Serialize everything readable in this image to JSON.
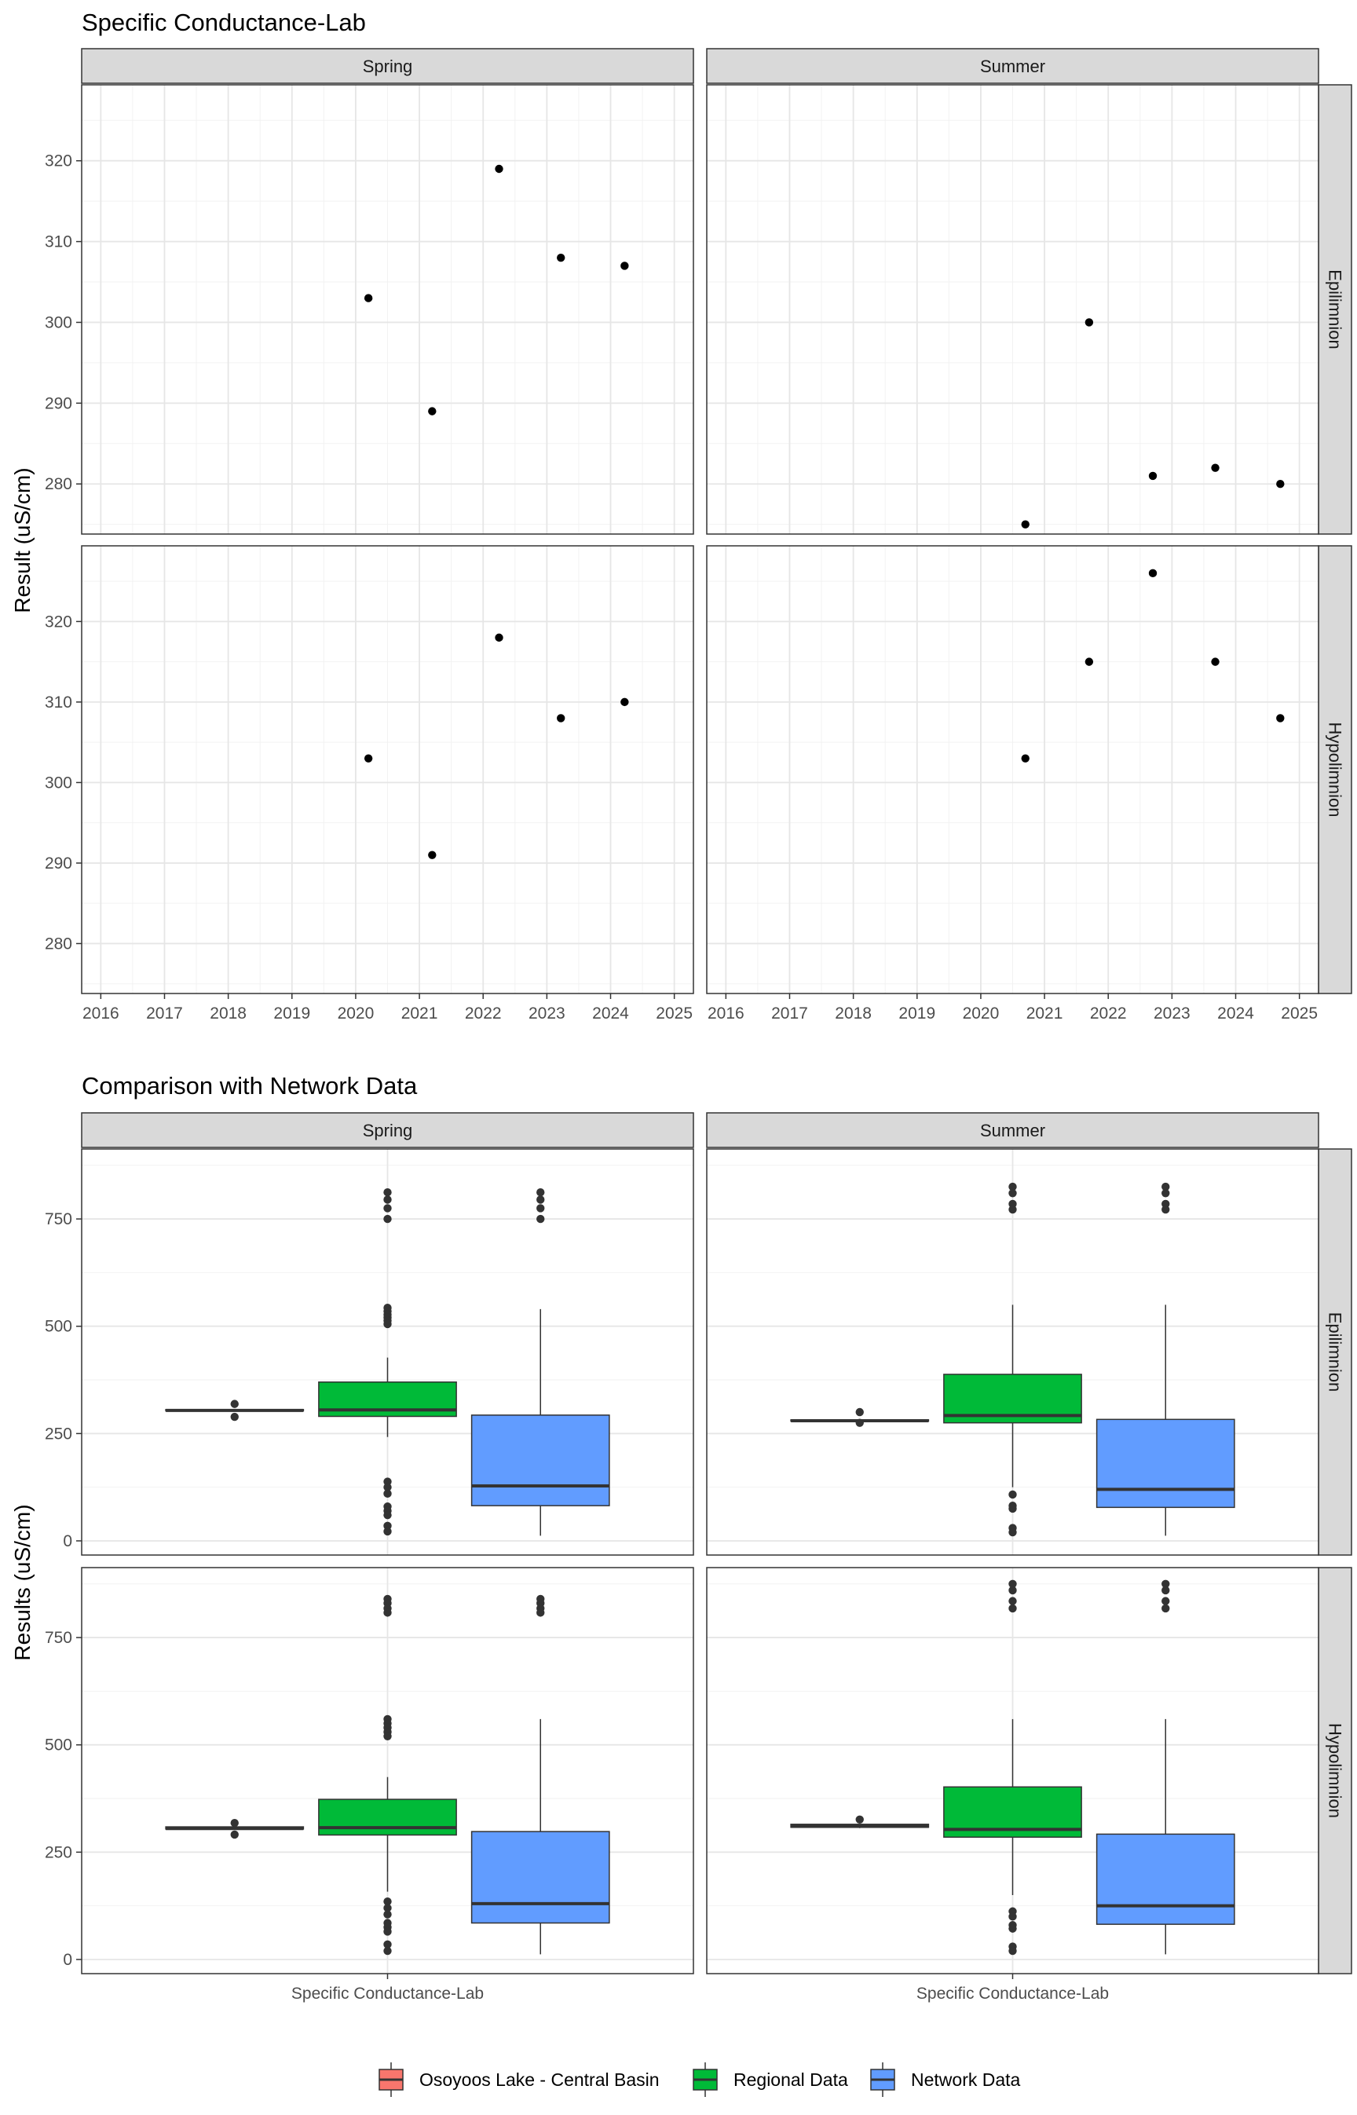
{
  "chart_data": [
    {
      "type": "scatter",
      "title": "Specific Conductance-Lab",
      "ylabel": "Result (uS/cm)",
      "xlabel": "",
      "x_ticks": [
        "2016",
        "2017",
        "2018",
        "2019",
        "2020",
        "2021",
        "2022",
        "2023",
        "2024",
        "2025"
      ],
      "x_range": [
        2015.7,
        2025.3
      ],
      "y_ticks": [
        280,
        290,
        300,
        310,
        320
      ],
      "ylim": [
        273.8,
        329.4
      ],
      "facet_cols": [
        "Spring",
        "Summer"
      ],
      "facet_rows": [
        "Epilimnion",
        "Hypolimnion"
      ],
      "grid": true,
      "panels": [
        {
          "col": "Spring",
          "row": "Epilimnion",
          "points": [
            {
              "x": 2020.2,
              "y": 303
            },
            {
              "x": 2021.2,
              "y": 289
            },
            {
              "x": 2022.25,
              "y": 319
            },
            {
              "x": 2023.22,
              "y": 308
            },
            {
              "x": 2024.22,
              "y": 307
            }
          ]
        },
        {
          "col": "Summer",
          "row": "Epilimnion",
          "points": [
            {
              "x": 2020.7,
              "y": 275
            },
            {
              "x": 2021.7,
              "y": 300
            },
            {
              "x": 2022.7,
              "y": 281
            },
            {
              "x": 2023.68,
              "y": 282
            },
            {
              "x": 2024.7,
              "y": 280
            }
          ]
        },
        {
          "col": "Spring",
          "row": "Hypolimnion",
          "points": [
            {
              "x": 2020.2,
              "y": 303
            },
            {
              "x": 2021.2,
              "y": 291
            },
            {
              "x": 2022.25,
              "y": 318
            },
            {
              "x": 2023.22,
              "y": 308
            },
            {
              "x": 2024.22,
              "y": 310
            }
          ]
        },
        {
          "col": "Summer",
          "row": "Hypolimnion",
          "points": [
            {
              "x": 2020.7,
              "y": 303
            },
            {
              "x": 2021.7,
              "y": 315
            },
            {
              "x": 2022.7,
              "y": 326
            },
            {
              "x": 2023.68,
              "y": 315
            },
            {
              "x": 2024.7,
              "y": 308
            }
          ]
        }
      ]
    },
    {
      "type": "box",
      "title": "Comparison with Network Data",
      "ylabel": "Results (uS/cm)",
      "xlabel": "",
      "categories": [
        "Specific Conductance-Lab"
      ],
      "y_ticks": [
        0,
        250,
        500,
        750
      ],
      "ylim": [
        -33,
        913
      ],
      "facet_cols": [
        "Spring",
        "Summer"
      ],
      "facet_rows": [
        "Epilimnion",
        "Hypolimnion"
      ],
      "legend_position": "bottom",
      "series": [
        {
          "name": "Osoyoos Lake - Central Basin",
          "color": "#F8766D"
        },
        {
          "name": "Regional Data",
          "color": "#00BA38"
        },
        {
          "name": "Network Data",
          "color": "#619CFF"
        }
      ],
      "panels": [
        {
          "col": "Spring",
          "row": "Epilimnion",
          "boxes": [
            {
              "series": "Osoyoos Lake - Central Basin",
              "min": 303,
              "q1": 303,
              "median": 304,
              "q3": 306,
              "max": 306,
              "outliers": [
                319,
                289
              ]
            },
            {
              "series": "Regional Data",
              "min": 242,
              "q1": 290,
              "median": 305,
              "q3": 370,
              "max": 427,
              "outliers": [
                812,
                795,
                775,
                750,
                543,
                535,
                527,
                520,
                513,
                505,
                138,
                125,
                110,
                80,
                70,
                60,
                35,
                22
              ]
            },
            {
              "series": "Network Data",
              "min": 12,
              "q1": 82,
              "median": 128,
              "q3": 293,
              "max": 540,
              "outliers": [
                812,
                795,
                775,
                750
              ]
            }
          ]
        },
        {
          "col": "Summer",
          "row": "Epilimnion",
          "boxes": [
            {
              "series": "Osoyoos Lake - Central Basin",
              "min": 279,
              "q1": 279,
              "median": 280,
              "q3": 282,
              "max": 282,
              "outliers": [
                300,
                275
              ]
            },
            {
              "series": "Regional Data",
              "min": 125,
              "q1": 275,
              "median": 292,
              "q3": 388,
              "max": 550,
              "outliers": [
                825,
                810,
                785,
                772,
                108,
                82,
                75,
                30,
                20
              ]
            },
            {
              "series": "Network Data",
              "min": 12,
              "q1": 78,
              "median": 120,
              "q3": 283,
              "max": 550,
              "outliers": [
                825,
                810,
                785,
                772
              ]
            }
          ]
        },
        {
          "col": "Spring",
          "row": "Hypolimnion",
          "boxes": [
            {
              "series": "Osoyoos Lake - Central Basin",
              "min": 304,
              "q1": 304,
              "median": 305,
              "q3": 309,
              "max": 310,
              "outliers": [
                318,
                291
              ]
            },
            {
              "series": "Regional Data",
              "min": 158,
              "q1": 290,
              "median": 307,
              "q3": 373,
              "max": 425,
              "outliers": [
                840,
                830,
                818,
                808,
                560,
                550,
                540,
                530,
                520,
                135,
                120,
                105,
                85,
                75,
                65,
                35,
                20
              ]
            },
            {
              "series": "Network Data",
              "min": 12,
              "q1": 85,
              "median": 130,
              "q3": 298,
              "max": 560,
              "outliers": [
                840,
                830,
                818,
                808
              ]
            }
          ]
        },
        {
          "col": "Summer",
          "row": "Hypolimnion",
          "boxes": [
            {
              "series": "Osoyoos Lake - Central Basin",
              "min": 306,
              "q1": 308,
              "median": 310,
              "q3": 315,
              "max": 315,
              "outliers": [
                326
              ]
            },
            {
              "series": "Regional Data",
              "min": 150,
              "q1": 285,
              "median": 303,
              "q3": 402,
              "max": 560,
              "outliers": [
                875,
                860,
                835,
                818,
                112,
                100,
                80,
                72,
                30,
                20
              ]
            },
            {
              "series": "Network Data",
              "min": 12,
              "q1": 82,
              "median": 125,
              "q3": 292,
              "max": 560,
              "outliers": [
                875,
                860,
                835,
                818
              ]
            }
          ]
        }
      ]
    }
  ]
}
